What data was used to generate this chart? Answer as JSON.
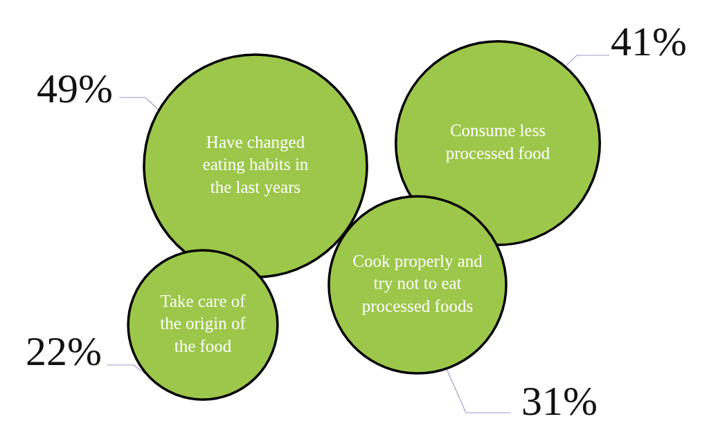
{
  "chart_data": {
    "type": "other",
    "categories": [
      "Have changed eating habits in the last years",
      "Consume less processed food",
      "Cook properly and try not to eat processed foods",
      "Take care of the origin of the food"
    ],
    "values": [
      49,
      41,
      31,
      22
    ],
    "value_labels": [
      "49%",
      "41%",
      "31%",
      "22%"
    ],
    "color": "#9cc74a"
  }
}
